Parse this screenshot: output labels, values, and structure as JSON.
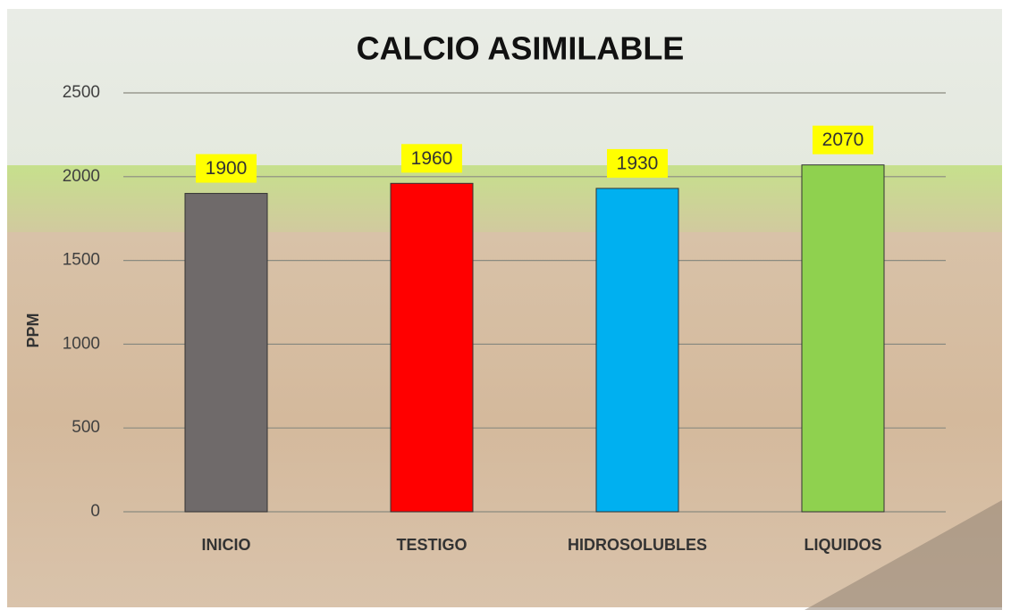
{
  "chart_data": {
    "type": "bar",
    "title": "CALCIO ASIMILABLE",
    "y_label": "PPM",
    "categories": [
      "INICIO",
      "TESTIGO",
      "HIDROSOLUBLES",
      "LIQUIDOS"
    ],
    "values": [
      1900,
      1960,
      1930,
      2070
    ],
    "colors": [
      "#6f6a6a",
      "#ff0000",
      "#00b0f0",
      "#8fd14f"
    ],
    "ylim": [
      0,
      2500
    ],
    "yticks": [
      0,
      500,
      1000,
      1500,
      2000,
      2500
    ],
    "grid": true
  }
}
